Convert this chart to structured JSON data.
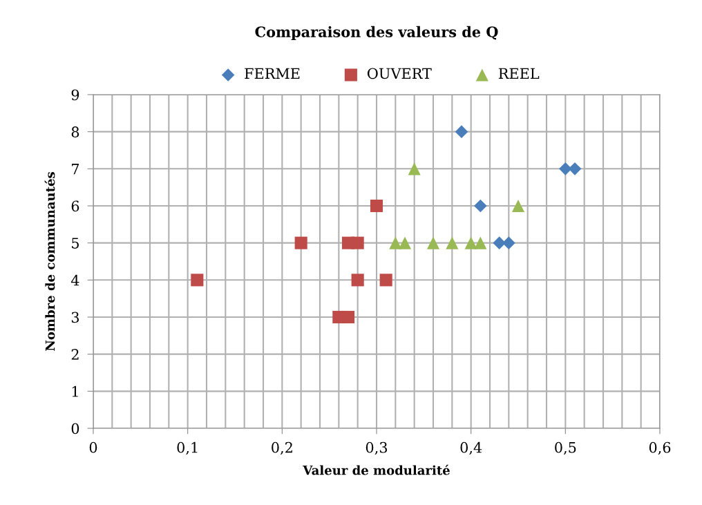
{
  "chart_data": {
    "type": "scatter",
    "title": "Comparaison des valeurs de Q",
    "xlabel": "Valeur de modularité",
    "ylabel": "Nombre de communautés",
    "series": [
      {
        "name": "FERME",
        "color": "#4a7ebb",
        "marker": "diamond",
        "x": [
          0.39,
          0.5,
          0.51,
          0.41,
          0.43,
          0.44
        ],
        "values": [
          8,
          7,
          7,
          6,
          5,
          5
        ]
      },
      {
        "name": "OUVERT",
        "color": "#be4b48",
        "marker": "square",
        "x": [
          0.11,
          0.22,
          0.27,
          0.28,
          0.3,
          0.28,
          0.31,
          0.26,
          0.27
        ],
        "values": [
          4,
          5,
          5,
          5,
          6,
          4,
          4,
          3,
          3
        ]
      },
      {
        "name": "REEL",
        "color": "#98b954",
        "marker": "triangle",
        "x": [
          0.34,
          0.45,
          0.32,
          0.33,
          0.36,
          0.38,
          0.4,
          0.41
        ],
        "values": [
          7,
          6,
          5,
          5,
          5,
          5,
          5,
          5
        ]
      }
    ],
    "xlim": [
      0,
      0.6
    ],
    "xticks": [
      {
        "value": 0,
        "label": "0"
      },
      {
        "value": 0.02,
        "label": null
      },
      {
        "value": 0.04,
        "label": null
      },
      {
        "value": 0.06,
        "label": null
      },
      {
        "value": 0.08,
        "label": null
      },
      {
        "value": 0.1,
        "label": "0,1"
      },
      {
        "value": 0.12,
        "label": null
      },
      {
        "value": 0.14,
        "label": null
      },
      {
        "value": 0.16,
        "label": null
      },
      {
        "value": 0.18,
        "label": null
      },
      {
        "value": 0.2,
        "label": "0,2"
      },
      {
        "value": 0.22,
        "label": null
      },
      {
        "value": 0.24,
        "label": null
      },
      {
        "value": 0.26,
        "label": null
      },
      {
        "value": 0.28,
        "label": null
      },
      {
        "value": 0.3,
        "label": "0,3"
      },
      {
        "value": 0.32,
        "label": null
      },
      {
        "value": 0.34,
        "label": null
      },
      {
        "value": 0.36,
        "label": null
      },
      {
        "value": 0.38,
        "label": null
      },
      {
        "value": 0.4,
        "label": "0,4"
      },
      {
        "value": 0.42,
        "label": null
      },
      {
        "value": 0.44,
        "label": null
      },
      {
        "value": 0.46,
        "label": null
      },
      {
        "value": 0.48,
        "label": null
      },
      {
        "value": 0.5,
        "label": "0,5"
      },
      {
        "value": 0.52,
        "label": null
      },
      {
        "value": 0.54,
        "label": null
      },
      {
        "value": 0.56,
        "label": null
      },
      {
        "value": 0.58,
        "label": null
      },
      {
        "value": 0.6,
        "label": "0,6"
      }
    ],
    "ylim": [
      0,
      9
    ],
    "yticks": [
      0,
      1,
      2,
      3,
      4,
      5,
      6,
      7,
      8,
      9
    ],
    "grid": true,
    "legend": "top"
  }
}
